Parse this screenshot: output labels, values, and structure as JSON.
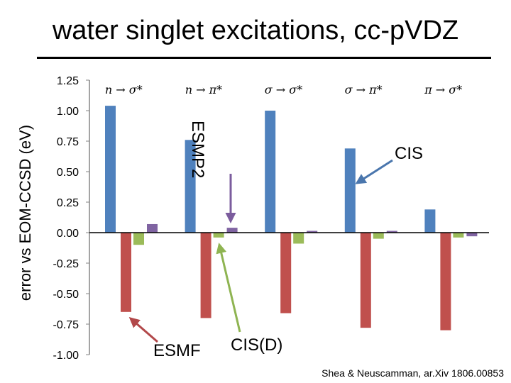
{
  "chart_data": {
    "type": "bar",
    "title": "water singlet excitations, cc-pVDZ",
    "ylabel": "error vs EOM-CCSD (eV)",
    "xlabel": "",
    "ylim": [
      -1.0,
      1.25
    ],
    "yticks": [
      "1.25",
      "1.00",
      "0.75",
      "0.50",
      "0.25",
      "0.00",
      "-0.25",
      "-0.50",
      "-0.75",
      "-1.00"
    ],
    "ytick_values": [
      1.25,
      1.0,
      0.75,
      0.5,
      0.25,
      0.0,
      -0.25,
      -0.5,
      -0.75,
      -1.0
    ],
    "categories": [
      "n → σ*",
      "n → π*",
      "σ → σ*",
      "σ → π*",
      "π → σ*"
    ],
    "series": [
      {
        "name": "CIS",
        "color": "#4f81bd",
        "values": [
          1.04,
          0.76,
          1.0,
          0.69,
          0.19
        ]
      },
      {
        "name": "ESMF",
        "color": "#c0504d",
        "values": [
          -0.65,
          -0.7,
          -0.66,
          -0.78,
          -0.8
        ]
      },
      {
        "name": "CIS(D)",
        "color": "#9bbb59",
        "values": [
          -0.1,
          -0.04,
          -0.09,
          -0.05,
          -0.04
        ]
      },
      {
        "name": "ESMP2",
        "color": "#8064a2",
        "values": [
          0.07,
          0.04,
          0.01,
          0.0,
          -0.03
        ]
      }
    ],
    "annotations": [
      "ESMP2",
      "CIS",
      "ESMF",
      "CIS(D)"
    ],
    "grid": false,
    "legend": "none"
  },
  "citation": "Shea & Neuscamman, ar.Xiv 1806.00853"
}
